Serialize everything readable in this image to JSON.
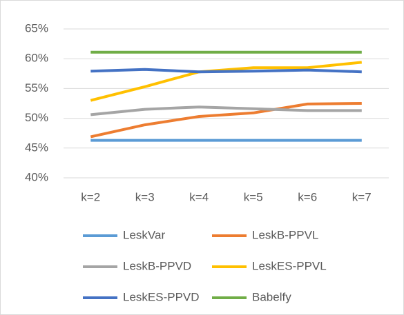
{
  "chart_data": {
    "type": "line",
    "categories": [
      "k=2",
      "k=3",
      "k=4",
      "k=5",
      "k=6",
      "k=7"
    ],
    "series": [
      {
        "name": "LeskVar",
        "color": "#5b9bd5",
        "values": [
          46.3,
          46.3,
          46.3,
          46.3,
          46.3,
          46.3
        ]
      },
      {
        "name": "LeskB-PPVL",
        "color": "#ed7d31",
        "values": [
          46.9,
          48.9,
          50.3,
          50.9,
          52.4,
          52.5
        ]
      },
      {
        "name": "LeskB-PPVD",
        "color": "#a5a5a5",
        "values": [
          50.6,
          51.5,
          51.9,
          51.6,
          51.3,
          51.3
        ]
      },
      {
        "name": "LeskES-PPVL",
        "color": "#ffc000",
        "values": [
          53.0,
          55.3,
          57.8,
          58.5,
          58.5,
          59.4
        ]
      },
      {
        "name": "LeskES-PPVD",
        "color": "#4472c4",
        "values": [
          57.9,
          58.2,
          57.8,
          57.9,
          58.1,
          57.8
        ]
      },
      {
        "name": "Babelfy",
        "color": "#70ad47",
        "values": [
          61.1,
          61.1,
          61.1,
          61.1,
          61.1,
          61.1
        ]
      }
    ],
    "ylim": [
      40,
      65
    ],
    "yticks": [
      {
        "value": 40,
        "label": "40%"
      },
      {
        "value": 45,
        "label": "45%"
      },
      {
        "value": 50,
        "label": "50%"
      },
      {
        "value": 55,
        "label": "55%"
      },
      {
        "value": 60,
        "label": "60%"
      },
      {
        "value": 65,
        "label": "65%"
      }
    ],
    "grid": true,
    "legend": "bottom"
  }
}
